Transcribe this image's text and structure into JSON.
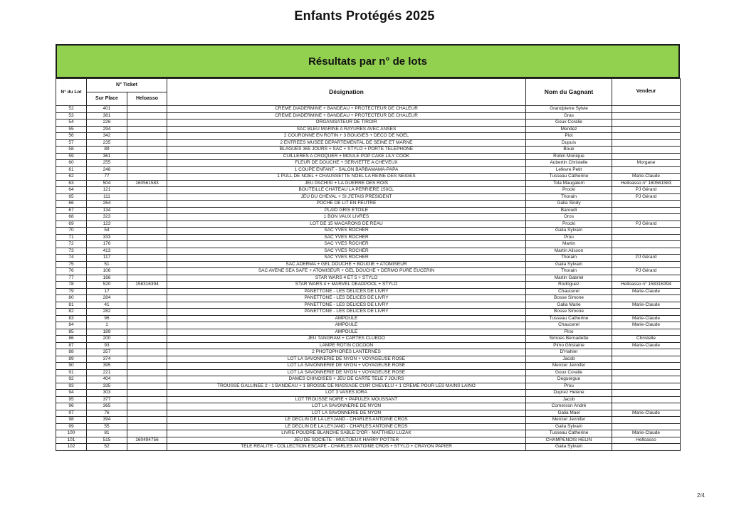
{
  "page": {
    "title": "Enfants Protégés 2025",
    "page_number": "2/4"
  },
  "colors": {
    "banner_green": "#92d050",
    "border": "#1c1c1c"
  },
  "table": {
    "banner_title": "Résultats par n° de lots",
    "headers": {
      "lot": "N° du Lot",
      "ticket_group": "N° Ticket",
      "sur_place": "Sur Place",
      "heloasso": "Heloasso",
      "designation": "Désignation",
      "winner": "Nom du Gagnant",
      "vendeur": "Vendeur"
    },
    "rows": [
      [
        "52",
        "401",
        "",
        "CREME DIADERMINE + BANDEAU + PROTECTEUR DE CHALEUR",
        "Grandpierre Sylvie",
        ""
      ],
      [
        "53",
        "381",
        "",
        "CREME DIADERMINE + BANDEAU + PROTECTEUR DE CHALEUR",
        "Gras",
        ""
      ],
      [
        "54",
        "226",
        "",
        "ORGANISATEUR DE TIROIR",
        "Goux Coralie",
        ""
      ],
      [
        "55",
        "294",
        "",
        "SAC BLEU MARINE A RAYURES AVEC ANSES",
        "Mendez",
        ""
      ],
      [
        "56",
        "342",
        "",
        "2 COURONNE EN ROTIN + 3 BOUGIES + DECO DE NOEL",
        "Piot",
        ""
      ],
      [
        "57",
        "235",
        "",
        "2 ENTREES MUSEE DEPARTEMENTAL DE SEINE ET MARNE",
        "Dupuis",
        ""
      ],
      [
        "58",
        "89",
        "",
        "BLAGUES 365 JOURS + SAC + STYLO + PORTE TELEPHONE",
        "Boue",
        ""
      ],
      [
        "59",
        "361",
        "",
        "CUILLERES A CROQUER + MOULE POP CAKE LILY COOK",
        "Robin Monique",
        ""
      ],
      [
        "60",
        "255",
        "",
        "FLEUR DE DOUCHE + SERVIETTE A CHEVEUX",
        "Aubertin Christelle",
        "Morgane"
      ],
      [
        "61",
        "248",
        "",
        "1 COUPE ENFANT - SALON BARBAMAMA-PAPA",
        "Lefevre Petit",
        ""
      ],
      [
        "62",
        "77",
        "",
        "1 PULL DE NOEL + CHAUSSETTE NOEL LA REINE DES NEIGES",
        "Tusseau Catherine",
        "Marie-Claude"
      ],
      [
        "63",
        "504",
        "160561583",
        "JEU PACHISI + LA GUERRE DES ROIS",
        "Tola Maugalem",
        "Helloasso n° 160561583"
      ],
      [
        "64",
        "121",
        "",
        "BOUTEILLE CHÂTEAU LA PERRIERE 150CL",
        "Procki",
        "PJ Gérard"
      ],
      [
        "65",
        "111",
        "",
        "JEU DU CHEVAL + SI J'ETAIS PRESIDENT",
        "Thorain",
        "PJ Gérard"
      ],
      [
        "66",
        "264",
        "",
        "POCHE DE LIT EN FEUTRE",
        "Galia Sindy",
        ""
      ],
      [
        "67",
        "134",
        "",
        "PLAID GRIS ETOILE",
        "Baroudi",
        ""
      ],
      [
        "68",
        "323",
        "",
        "1 BON VAUX LIVRES",
        "Oros",
        ""
      ],
      [
        "69",
        "123",
        "",
        "LOT DE 15 MACARONS DE REAU",
        "Procki",
        "PJ Gérard"
      ],
      [
        "70",
        "54",
        "",
        "SAC YVES ROCHER",
        "Galia Sylvain",
        ""
      ],
      [
        "71",
        "333",
        "",
        "SAC YVES ROCHER",
        "Prou",
        ""
      ],
      [
        "72",
        "176",
        "",
        "SAC YVES ROCHER",
        "Martin",
        ""
      ],
      [
        "73",
        "413",
        "",
        "SAC YVES ROCHER",
        "Martin Alisson",
        ""
      ],
      [
        "74",
        "117",
        "",
        "SAC YVES ROCHER",
        "Thorain",
        "PJ Gérard"
      ],
      [
        "75",
        "51",
        "",
        "SAC ADERMA + GEL DOUCHE + BOUGIE + ATOMISEUR",
        "Galia Sylvain",
        ""
      ],
      [
        "76",
        "106",
        "",
        "SAC AVENE SEA SAFE + ATOMISEUR + GEL DOUCHE + DERMO PURE EUCERIN",
        "Thorain",
        "PJ Gérard"
      ],
      [
        "77",
        "166",
        "",
        "STAR WARS 4 ET 5 + STYLO",
        "Martin Gabriel",
        ""
      ],
      [
        "78",
        "520",
        "158316394",
        "STAR WARS 4 + MARVEL DEADPOOL + STYLO",
        "Rodriguez",
        "Helloasso n° 158316394"
      ],
      [
        "79",
        "17",
        "",
        "PANETTONE - LES DELICES DE LIVRY",
        "Chaucerel",
        "Marie-Claude"
      ],
      [
        "80",
        "284",
        "",
        "PANETTONE - LES DELICES DE LIVRY",
        "Bosse Simone",
        ""
      ],
      [
        "81",
        "41",
        "",
        "PANETTONE - LES DELICES DE LIVRY",
        "Galia Marie",
        "Marie-Claude"
      ],
      [
        "82",
        "282",
        "",
        "PANETTONE - LES DELICES DE LIVRY",
        "Bosse Simone",
        ""
      ],
      [
        "83",
        "96",
        "",
        "AMPOULE",
        "Tusseau Catherine",
        "Marie-Claude"
      ],
      [
        "84",
        "1",
        "",
        "AMPOULE",
        "Chaucerel",
        "Marie-Claude"
      ],
      [
        "85",
        "189",
        "",
        "AMPOULE",
        "Pino",
        ""
      ],
      [
        "86",
        "200",
        "",
        "JEU TANGRAM + CARTES  CLUEDO",
        "Simoes Bernadette",
        "Christelle"
      ],
      [
        "87",
        "93",
        "",
        "LAMPE ROTIN COCOON",
        "Pimo Ghislaine",
        "Marie-Claude"
      ],
      [
        "88",
        "357",
        "",
        "2 PHOTOPHORES LANTERNES",
        "D'Hahier",
        ""
      ],
      [
        "89",
        "374",
        "",
        "LOT LA SAVONNERIE DE NYON + VOYAGEUSE ROSE",
        "Jacob",
        ""
      ],
      [
        "90",
        "395",
        "",
        "LOT LA SAVONNERIE DE NYON + VOYAGEUSE ROSE",
        "Mercier Jennifer",
        ""
      ],
      [
        "91",
        "221",
        "",
        "LOT LA SAVONNERIE DE NYON + VOYAGEUSE ROSE",
        "Goux Coralie",
        ""
      ],
      [
        "92",
        "404",
        "",
        "DAMES CHINOISES + JEU DE CARTE TELE 7 JOURS",
        "Deguergue",
        ""
      ],
      [
        "93",
        "335",
        "",
        "TROUSSE GALLINEE 2 - 1 BANDEAU + 1 BROSSE DE MASSAGE CUIR CHEVELU + 1 CREME POUR LES MAINS LAINO",
        "Prou",
        ""
      ],
      [
        "94",
        "303",
        "",
        "LOT 3 VASES IORA",
        "Duprez Helene",
        ""
      ],
      [
        "95",
        "377",
        "",
        "LOT TROUSSE NOIRE + PAPULEX MOUSSANT",
        "Jacob",
        ""
      ],
      [
        "96",
        "365",
        "",
        "LOT LA SAVONNERIE DE NYON",
        "Comerson André",
        ""
      ],
      [
        "97",
        "76",
        "",
        "LOT LA SAVONNERIE DE NYON",
        "Galia Mael",
        "Marie-Claude"
      ],
      [
        "98",
        "394",
        "",
        "LE DECLIN DE LA LEYJAND - CHARLES ANTOINE CROS",
        "Mercier Jennifer",
        ""
      ],
      [
        "99",
        "55",
        "",
        "LE DECLIN DE LA LEYJAND - CHARLES ANTOINE CROS",
        "Galia Sylvain",
        ""
      ],
      [
        "100",
        "81",
        "",
        "LIVRE POUDRE BLANCHE SABLE D'OR -  MATTHIEU LUZAK",
        "Tusseau Catherine",
        "Marie-Claude"
      ],
      [
        "101",
        "515",
        "160494756",
        "JEU DE SOCIETE - MULTIJEUX HARRY POTTER",
        "CHAMPENOIS HELIN",
        "Helloasso"
      ],
      [
        "102",
        "52",
        "",
        "TELE REALITE - COLLECTION ESCAPE - CHARLES ANTOINE CROS + STYLO + CRAYON PAPIER",
        "Galia Sylvain",
        ""
      ]
    ]
  }
}
